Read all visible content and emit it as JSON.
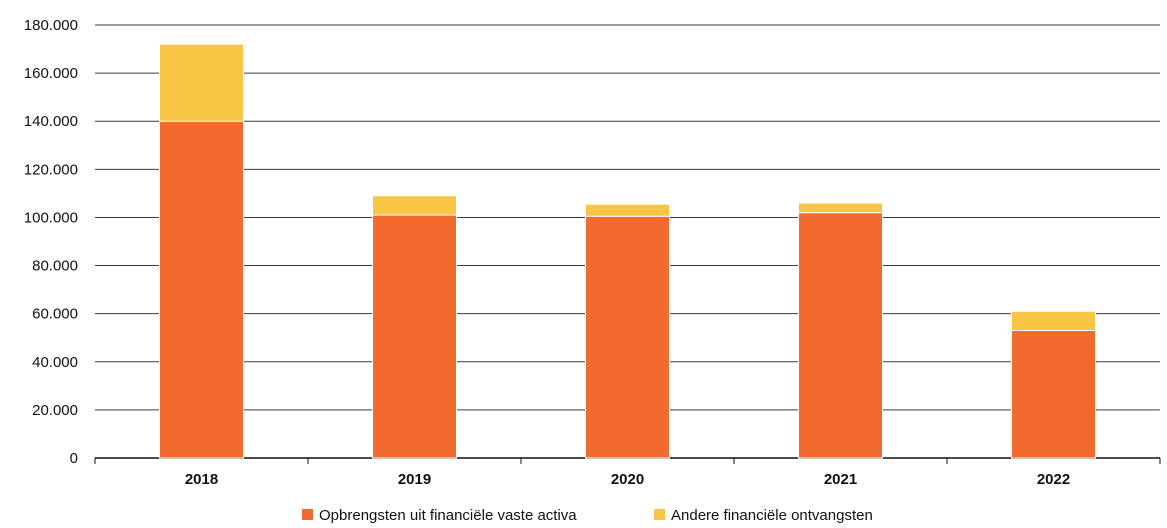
{
  "chart_data": {
    "type": "bar",
    "stacked": true,
    "categories": [
      "2018",
      "2019",
      "2020",
      "2021",
      "2022"
    ],
    "series": [
      {
        "name": "Opbrengsten uit financiële vaste activa",
        "values": [
          140000,
          101000,
          100500,
          102000,
          53000
        ],
        "color": "#f26a2e"
      },
      {
        "name": "Andere financiële ontvangsten",
        "values": [
          32000,
          8000,
          5000,
          4000,
          8000
        ],
        "color": "#f7c543"
      }
    ],
    "ylim": [
      0,
      180000
    ],
    "yticks": [
      "0",
      "20.000",
      "40.000",
      "60.000",
      "80.000",
      "100.000",
      "120.000",
      "140.000",
      "160.000",
      "180.000"
    ],
    "ytick_values": [
      0,
      20000,
      40000,
      60000,
      80000,
      100000,
      120000,
      140000,
      160000,
      180000
    ],
    "grid": true,
    "legend_position": "bottom",
    "title": "",
    "xlabel": "",
    "ylabel": ""
  }
}
